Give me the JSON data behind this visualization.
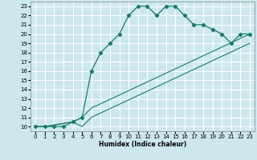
{
  "xlabel": "Humidex (Indice chaleur)",
  "bg_color": "#cce8ed",
  "grid_color": "#b0d0d8",
  "line_color": "#1a7a6e",
  "xlim": [
    -0.5,
    23.5
  ],
  "ylim": [
    9.5,
    23.5
  ],
  "xticks": [
    0,
    1,
    2,
    3,
    4,
    5,
    6,
    7,
    8,
    9,
    10,
    11,
    12,
    13,
    14,
    15,
    16,
    17,
    18,
    19,
    20,
    21,
    22,
    23
  ],
  "yticks": [
    10,
    11,
    12,
    13,
    14,
    15,
    16,
    17,
    18,
    19,
    20,
    21,
    22,
    23
  ],
  "series1": [
    [
      0,
      10
    ],
    [
      1,
      10
    ],
    [
      2,
      10
    ],
    [
      3,
      10
    ],
    [
      4,
      10.5
    ],
    [
      5,
      11
    ],
    [
      6,
      16
    ],
    [
      7,
      18
    ],
    [
      8,
      19
    ],
    [
      9,
      20
    ],
    [
      10,
      22
    ],
    [
      11,
      23
    ],
    [
      12,
      23
    ],
    [
      13,
      22
    ],
    [
      14,
      23
    ],
    [
      15,
      23
    ],
    [
      16,
      22
    ],
    [
      17,
      21
    ],
    [
      18,
      21
    ],
    [
      19,
      20.5
    ],
    [
      20,
      20
    ],
    [
      21,
      19
    ],
    [
      22,
      20
    ],
    [
      23,
      20
    ]
  ],
  "series2": [
    [
      0,
      10
    ],
    [
      1,
      10
    ],
    [
      4,
      10.5
    ],
    [
      5,
      11
    ],
    [
      6,
      12
    ],
    [
      23,
      20
    ]
  ],
  "series3": [
    [
      0,
      10
    ],
    [
      1,
      10
    ],
    [
      4,
      10.5
    ],
    [
      5,
      10
    ],
    [
      6,
      11
    ],
    [
      23,
      19
    ]
  ]
}
